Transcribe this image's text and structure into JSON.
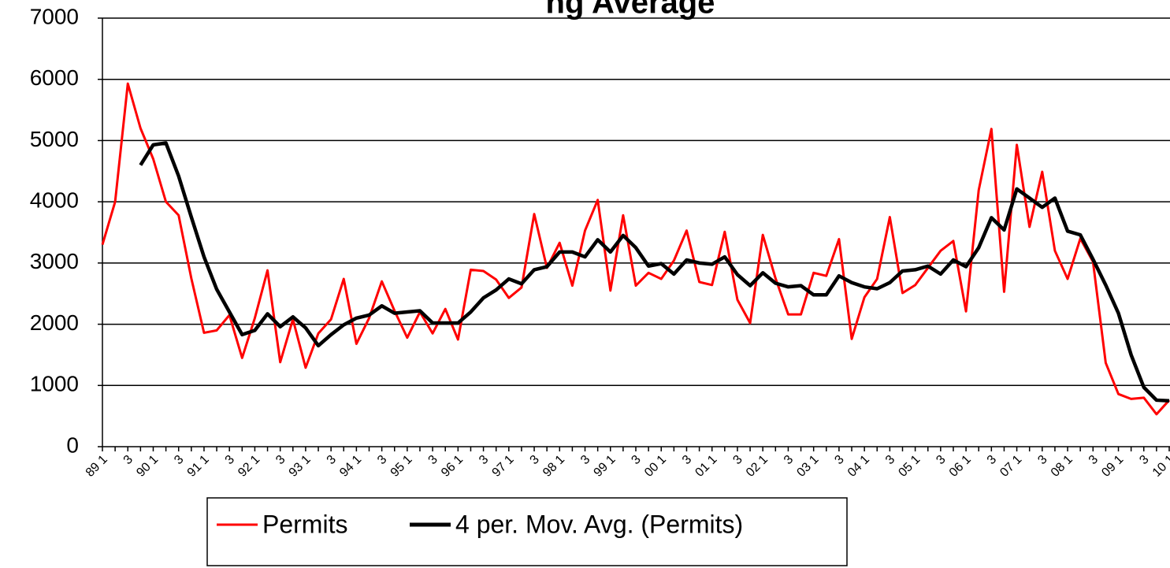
{
  "chart_data": {
    "type": "line",
    "title": "ng Average",
    "categories": [
      "89 1",
      null,
      "3",
      null,
      "90 1",
      null,
      "3",
      null,
      "91 1",
      null,
      "3",
      null,
      "92 1",
      null,
      "3",
      null,
      "93 1",
      null,
      "3",
      null,
      "94 1",
      null,
      "3",
      null,
      "95 1",
      null,
      "3",
      null,
      "96 1",
      null,
      "3",
      null,
      "97 1",
      null,
      "3",
      null,
      "98 1",
      null,
      "3",
      null,
      "99 1",
      null,
      "3",
      null,
      "00 1",
      null,
      "3",
      null,
      "01 1",
      null,
      "3",
      null,
      "02 1",
      null,
      "3",
      null,
      "03 1",
      null,
      "3",
      null,
      "04 1",
      null,
      "3",
      null,
      "05 1",
      null,
      "3",
      null,
      "06 1",
      null,
      "3",
      null,
      "07 1",
      null,
      "3",
      null,
      "08 1",
      null,
      "3",
      null,
      "09 1",
      null,
      "3",
      null,
      "10 1"
    ],
    "series": [
      {
        "name": "Permits",
        "color": "#ff0000",
        "values": [
          3300,
          4000,
          5930,
          5200,
          4700,
          4000,
          3780,
          2750,
          1860,
          1900,
          2150,
          1450,
          2100,
          2880,
          1380,
          2080,
          1290,
          1850,
          2080,
          2740,
          1680,
          2100,
          2700,
          2220,
          1780,
          2200,
          1850,
          2250,
          1750,
          2890,
          2870,
          2730,
          2430,
          2600,
          3800,
          2920,
          3330,
          2630,
          3530,
          4030,
          2550,
          3780,
          2630,
          2840,
          2740,
          3040,
          3530,
          2690,
          2640,
          3510,
          2400,
          2020,
          3460,
          2750,
          2160,
          2160,
          2840,
          2790,
          3390,
          1760,
          2440,
          2740,
          3750,
          2510,
          2640,
          2920,
          3200,
          3360,
          2210,
          4190,
          5190,
          2530,
          4930,
          3590,
          4490,
          3200,
          2740,
          3400,
          3020,
          1370,
          860,
          780,
          800,
          530,
          760
        ]
      },
      {
        "name": "4 per. Mov. Avg. (Permits)",
        "color": "#000000",
        "values": [
          null,
          null,
          null,
          4600,
          4930,
          4960,
          4420,
          3750,
          3100,
          2570,
          2200,
          1830,
          1900,
          2170,
          1960,
          2120,
          1940,
          1650,
          1830,
          1990,
          2100,
          2150,
          2300,
          2180,
          2200,
          2220,
          2020,
          2020,
          2020,
          2200,
          2430,
          2560,
          2740,
          2660,
          2890,
          2940,
          3180,
          3180,
          3100,
          3380,
          3180,
          3450,
          3250,
          2950,
          2990,
          2820,
          3050,
          3000,
          2980,
          3100,
          2810,
          2630,
          2840,
          2670,
          2610,
          2630,
          2480,
          2480,
          2790,
          2680,
          2610,
          2580,
          2680,
          2870,
          2890,
          2950,
          2820,
          3050,
          2940,
          3250,
          3740,
          3540,
          4210,
          4060,
          3910,
          4060,
          3520,
          3460,
          3060,
          2640,
          2180,
          1500,
          970,
          760,
          750
        ]
      }
    ],
    "ylim": [
      0,
      7000
    ],
    "yticks": [
      0,
      1000,
      2000,
      3000,
      4000,
      5000,
      6000,
      7000
    ],
    "grid": true,
    "legend": "bottom"
  }
}
